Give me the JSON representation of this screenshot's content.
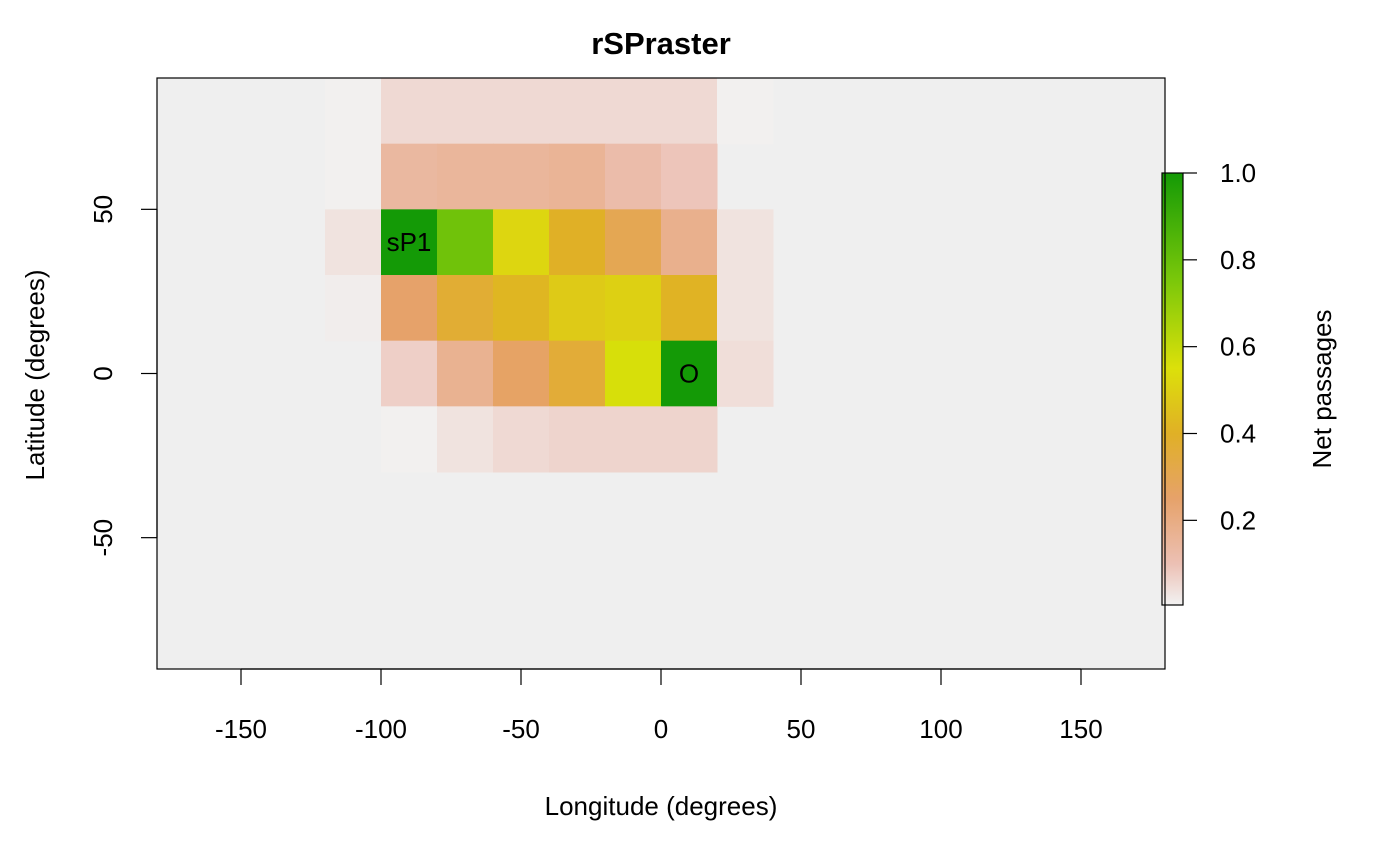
{
  "chart_data": {
    "type": "heatmap",
    "title": "rSPraster",
    "xlabel": "Longitude (degrees)",
    "ylabel": "Latitude (degrees)",
    "xlim": [
      -180,
      180
    ],
    "ylim": [
      -90,
      90
    ],
    "xticks": [
      -150,
      -100,
      -50,
      0,
      50,
      100,
      150
    ],
    "yticks": [
      -50,
      0,
      50
    ],
    "background_color": "#efefef",
    "cell_width_deg": 20,
    "cell_height_deg": 20,
    "cells": [
      {
        "x": -120,
        "y": 70,
        "value": 0.005
      },
      {
        "x": -100,
        "y": 70,
        "value": 0.05
      },
      {
        "x": -80,
        "y": 70,
        "value": 0.05
      },
      {
        "x": -60,
        "y": 70,
        "value": 0.05
      },
      {
        "x": -40,
        "y": 70,
        "value": 0.05
      },
      {
        "x": -20,
        "y": 70,
        "value": 0.05
      },
      {
        "x": 0,
        "y": 70,
        "value": 0.05
      },
      {
        "x": 20,
        "y": 70,
        "value": 0.005
      },
      {
        "x": -120,
        "y": 50,
        "value": 0.005
      },
      {
        "x": -100,
        "y": 50,
        "value": 0.14
      },
      {
        "x": -80,
        "y": 50,
        "value": 0.15
      },
      {
        "x": -60,
        "y": 50,
        "value": 0.15
      },
      {
        "x": -40,
        "y": 50,
        "value": 0.16
      },
      {
        "x": -20,
        "y": 50,
        "value": 0.12
      },
      {
        "x": 0,
        "y": 50,
        "value": 0.09
      },
      {
        "x": -120,
        "y": 30,
        "value": 0.03
      },
      {
        "x": -100,
        "y": 30,
        "value": 1.0
      },
      {
        "x": -80,
        "y": 30,
        "value": 0.78
      },
      {
        "x": -60,
        "y": 30,
        "value": 0.52
      },
      {
        "x": -40,
        "y": 30,
        "value": 0.4
      },
      {
        "x": -20,
        "y": 30,
        "value": 0.3
      },
      {
        "x": 0,
        "y": 30,
        "value": 0.18
      },
      {
        "x": 20,
        "y": 30,
        "value": 0.03
      },
      {
        "x": -120,
        "y": 10,
        "value": 0.01
      },
      {
        "x": -100,
        "y": 10,
        "value": 0.25
      },
      {
        "x": -80,
        "y": 10,
        "value": 0.37
      },
      {
        "x": -60,
        "y": 10,
        "value": 0.42
      },
      {
        "x": -40,
        "y": 10,
        "value": 0.48
      },
      {
        "x": -20,
        "y": 10,
        "value": 0.5
      },
      {
        "x": 0,
        "y": 10,
        "value": 0.41
      },
      {
        "x": 20,
        "y": 10,
        "value": 0.03
      },
      {
        "x": -100,
        "y": -10,
        "value": 0.07
      },
      {
        "x": -80,
        "y": -10,
        "value": 0.17
      },
      {
        "x": -60,
        "y": -10,
        "value": 0.26
      },
      {
        "x": -40,
        "y": -10,
        "value": 0.36
      },
      {
        "x": -20,
        "y": -10,
        "value": 0.56
      },
      {
        "x": 0,
        "y": -10,
        "value": 1.0
      },
      {
        "x": 20,
        "y": -10,
        "value": 0.04
      },
      {
        "x": -100,
        "y": -30,
        "value": 0.005
      },
      {
        "x": -80,
        "y": -30,
        "value": 0.03
      },
      {
        "x": -60,
        "y": -30,
        "value": 0.05
      },
      {
        "x": -40,
        "y": -30,
        "value": 0.06
      },
      {
        "x": -20,
        "y": -30,
        "value": 0.06
      },
      {
        "x": 0,
        "y": -30,
        "value": 0.06
      }
    ],
    "annotations": [
      {
        "text": "sP1",
        "x": -90,
        "y": 40
      },
      {
        "text": "O",
        "x": 10,
        "y": 0
      }
    ],
    "legend": {
      "title": "Net passages",
      "position": "right",
      "range": [
        0.005,
        1.0
      ],
      "ticks": [
        "0.2",
        "0.4",
        "0.6",
        "0.8",
        "1.0"
      ],
      "tick_values": [
        0.2,
        0.4,
        0.6,
        0.8,
        1.0
      ],
      "colors": [
        {
          "value": 0.0,
          "color": "#f2f2f2"
        },
        {
          "value": 0.1,
          "color": "#ecc0b4"
        },
        {
          "value": 0.25,
          "color": "#e6a26a"
        },
        {
          "value": 0.4,
          "color": "#e0b026"
        },
        {
          "value": 0.55,
          "color": "#dce00a"
        },
        {
          "value": 0.75,
          "color": "#7cc80a"
        },
        {
          "value": 1.0,
          "color": "#149a06"
        }
      ]
    }
  }
}
